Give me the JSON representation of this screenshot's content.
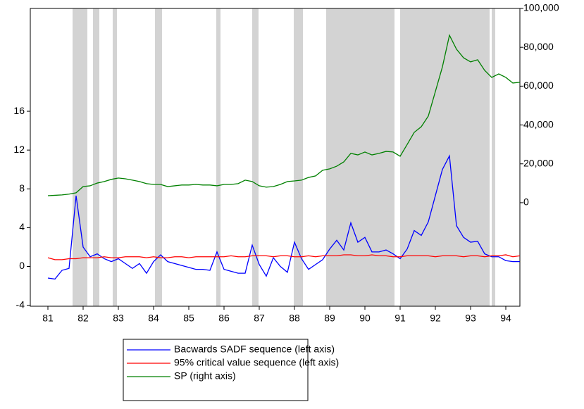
{
  "chart_data": {
    "type": "line",
    "x": [
      81.5,
      81.7,
      81.9,
      82.1,
      82.3,
      82.5,
      82.7,
      82.9,
      83.1,
      83.3,
      83.5,
      83.7,
      83.9,
      84.1,
      84.3,
      84.5,
      84.7,
      84.9,
      85.1,
      85.3,
      85.5,
      85.7,
      85.9,
      86.1,
      86.3,
      86.5,
      86.7,
      86.9,
      87.1,
      87.3,
      87.5,
      87.7,
      87.9,
      88.1,
      88.3,
      88.5,
      88.7,
      88.9,
      89.1,
      89.3,
      89.5,
      89.7,
      89.9,
      90.1,
      90.3,
      90.5,
      90.7,
      90.9,
      91.1,
      91.3,
      91.5,
      91.7,
      91.9,
      92.1,
      92.3,
      92.5,
      92.7,
      92.9,
      93.1,
      93.3,
      93.5,
      93.7,
      93.9,
      94.1,
      94.3,
      94.5,
      94.7,
      94.9
    ],
    "xlim": [
      81,
      94.9
    ],
    "xticks": [
      {
        "value": 81.5,
        "label": "81"
      },
      {
        "value": 82.5,
        "label": "82"
      },
      {
        "value": 83.5,
        "label": "83"
      },
      {
        "value": 84.5,
        "label": "84"
      },
      {
        "value": 85.5,
        "label": "85"
      },
      {
        "value": 86.5,
        "label": "86"
      },
      {
        "value": 87.5,
        "label": "87"
      },
      {
        "value": 88.5,
        "label": "88"
      },
      {
        "value": 89.5,
        "label": "89"
      },
      {
        "value": 90.5,
        "label": "90"
      },
      {
        "value": 91.5,
        "label": "91"
      },
      {
        "value": 92.5,
        "label": "92"
      },
      {
        "value": 93.5,
        "label": "93"
      },
      {
        "value": 94.5,
        "label": "94"
      }
    ],
    "ylim": [
      -4.1,
      26.6
    ],
    "yticks": [
      -4,
      0,
      4,
      8,
      12,
      16
    ],
    "y2lim": [
      -53300,
      100000
    ],
    "y2ticks": [
      0,
      {
        "value": 20000,
        "label": "20,000"
      },
      {
        "value": 40000,
        "label": "40,000"
      },
      {
        "value": 60000,
        "label": "60,000"
      },
      {
        "value": 80000,
        "label": "80,000"
      },
      {
        "value": 100000,
        "label": "100,000"
      }
    ],
    "shaded_regions": [
      [
        82.2,
        82.62
      ],
      [
        82.78,
        82.96
      ],
      [
        83.34,
        83.46
      ],
      [
        84.54,
        84.74
      ],
      [
        86.28,
        86.4
      ],
      [
        87.3,
        87.48
      ],
      [
        88.48,
        88.74
      ],
      [
        89.4,
        91.34
      ],
      [
        91.5,
        94.04
      ],
      [
        94.1,
        94.2
      ]
    ],
    "shade_color": "#d3d3d3",
    "legend": "bottom",
    "series": [
      {
        "name": "Bacwards SADF sequence (left axis)",
        "color": "#0000ff",
        "values": [
          -1.2,
          -1.3,
          -0.4,
          -0.2,
          7.3,
          2.0,
          1.0,
          1.3,
          0.8,
          0.5,
          0.8,
          0.3,
          -0.2,
          0.3,
          -0.7,
          0.5,
          1.2,
          0.5,
          0.3,
          0.1,
          -0.1,
          -0.3,
          -0.3,
          -0.4,
          1.5,
          -0.3,
          -0.5,
          -0.7,
          -0.7,
          2.2,
          0.2,
          -1.0,
          0.9,
          0.0,
          -0.6,
          2.5,
          0.8,
          -0.3,
          0.2,
          0.7,
          1.8,
          2.7,
          1.7,
          4.5,
          2.5,
          3.0,
          1.5,
          1.5,
          1.7,
          1.3,
          0.8,
          1.8,
          3.7,
          3.2,
          4.6,
          7.3,
          10,
          11.4,
          4.2,
          3.0,
          2.5,
          2.6,
          1.3,
          1.0,
          1.0,
          0.6,
          0.5,
          0.5
        ]
      },
      {
        "name": "95% critical value sequence (left axis)",
        "color": "#ff0000",
        "values": [
          0.9,
          0.7,
          0.7,
          0.8,
          0.8,
          0.9,
          0.9,
          0.9,
          1.0,
          0.9,
          0.9,
          1.0,
          1.0,
          1.0,
          0.9,
          1.0,
          0.9,
          0.9,
          1.0,
          1.0,
          0.9,
          1.0,
          1.0,
          1.0,
          1.0,
          1.0,
          1.1,
          1.0,
          1.0,
          1.1,
          1.1,
          1.1,
          1.0,
          1.1,
          1.1,
          1.0,
          1.0,
          1.1,
          1.0,
          1.1,
          1.1,
          1.1,
          1.2,
          1.2,
          1.1,
          1.1,
          1.2,
          1.1,
          1.1,
          1.0,
          1.0,
          1.1,
          1.1,
          1.1,
          1.1,
          1.0,
          1.1,
          1.1,
          1.1,
          1.0,
          1.1,
          1.1,
          1.0,
          1.1,
          1.1,
          1.2,
          1.0,
          1.1
        ]
      },
      {
        "name": "SP (right axis)",
        "color": "#008000",
        "axis": "y2",
        "values": [
          3600,
          3800,
          4000,
          4400,
          5100,
          8300,
          8700,
          10100,
          10900,
          12000,
          12700,
          12300,
          11600,
          10900,
          9800,
          9400,
          9400,
          8300,
          8700,
          9100,
          9100,
          9400,
          9100,
          9100,
          8700,
          9400,
          9400,
          9800,
          11600,
          10900,
          8700,
          8000,
          8300,
          9400,
          10900,
          11200,
          11600,
          13000,
          13800,
          16700,
          17400,
          18800,
          21000,
          25400,
          24600,
          26100,
          24600,
          25400,
          26400,
          26100,
          23900,
          30000,
          36200,
          39100,
          44600,
          57200,
          69900,
          86200,
          79000,
          74600,
          72500,
          73600,
          68100,
          64500,
          66300,
          64500,
          61600,
          62000
        ]
      }
    ]
  }
}
